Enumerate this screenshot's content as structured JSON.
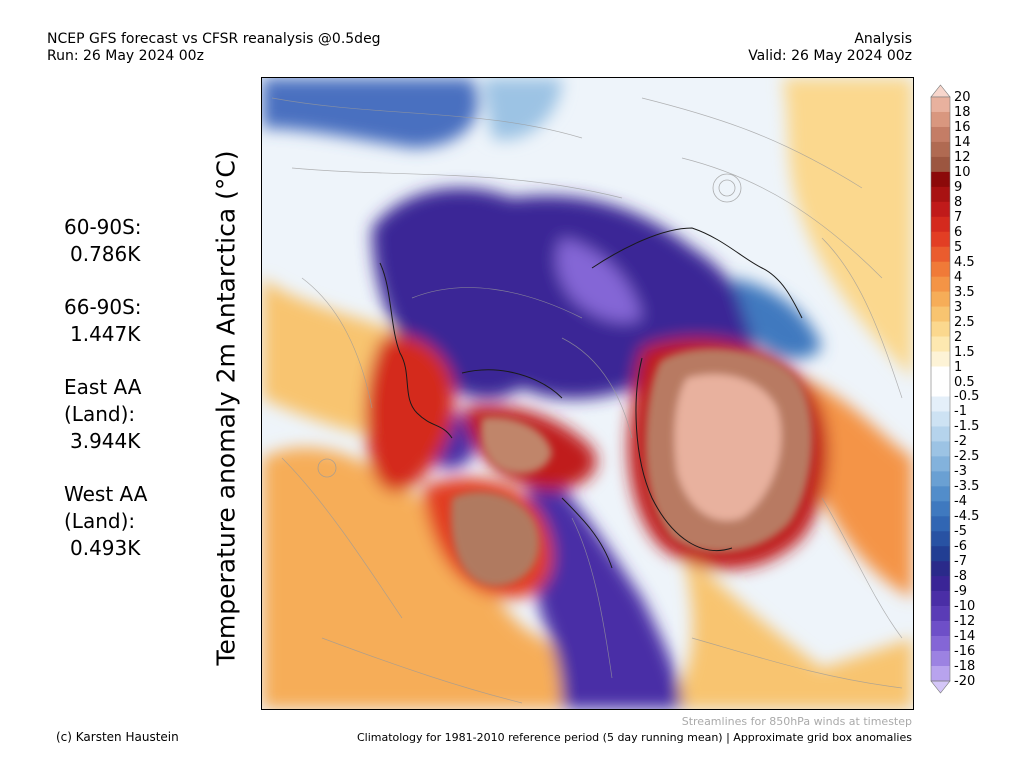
{
  "header": {
    "left_line1": "NCEP GFS forecast vs CFSR reanalysis @0.5deg",
    "left_line2": "Run: 26 May 2024 00z",
    "right_line1": "Analysis",
    "right_line2": "Valid: 26 May 2024 00z"
  },
  "stats": [
    {
      "label": "60-90S:",
      "value": "0.786K"
    },
    {
      "label": "66-90S:",
      "value": "1.447K"
    },
    {
      "label": "East AA\n(Land):",
      "value": "3.944K"
    },
    {
      "label": "West AA\n(Land):",
      "value": "0.493K"
    }
  ],
  "axis_label": "Temperature anomaly 2m Antarctica (°C)",
  "map": {
    "region": "Antarctica",
    "overlay": "streamlines",
    "background_color": "#f0f6fb",
    "coastline_color": "#000000",
    "streamline_color": "#9a9a9a"
  },
  "colorbar": {
    "labels": [
      "20",
      "18",
      "16",
      "14",
      "12",
      "10",
      "9",
      "8",
      "7",
      "6",
      "5",
      "4.5",
      "4",
      "3.5",
      "3",
      "2.5",
      "2",
      "1.5",
      "1",
      "0.5",
      "-0.5",
      "-1",
      "-1.5",
      "-2",
      "-2.5",
      "-3",
      "-3.5",
      "-4",
      "-4.5",
      "-5",
      "-6",
      "-7",
      "-8",
      "-9",
      "-10",
      "-12",
      "-14",
      "-16",
      "-18",
      "-20"
    ],
    "colors": [
      "#f7d6cc",
      "#e8b19e",
      "#d9977f",
      "#c47d66",
      "#b06a52",
      "#9c5640",
      "#8c0a0a",
      "#a81212",
      "#c01a1a",
      "#d42a1e",
      "#e23e24",
      "#ea5c2e",
      "#f07a38",
      "#f49446",
      "#f6ad58",
      "#f8c470",
      "#fbd88e",
      "#fde8b0",
      "#fdf3d6",
      "#ffffff",
      "#ffffff",
      "#e4eff9",
      "#cde2f3",
      "#b5d3ec",
      "#9cc3e4",
      "#83b2dc",
      "#6aa0d3",
      "#528dca",
      "#3f79bf",
      "#3166b3",
      "#2852a3",
      "#223e93",
      "#2a2a8a",
      "#3a2596",
      "#4a2ea6",
      "#5a3cb6",
      "#6e4fc8",
      "#8466d6",
      "#9c82e2",
      "#b8a3ee",
      "#d4c6f7"
    ]
  },
  "footer": {
    "streamline_note": "Streamlines for 850hPa winds at timestep",
    "credit": "(c) Karsten Haustein",
    "climatology_note": "Climatology for 1981-2010 reference period (5 day running mean) | Approximate grid box anomalies"
  }
}
